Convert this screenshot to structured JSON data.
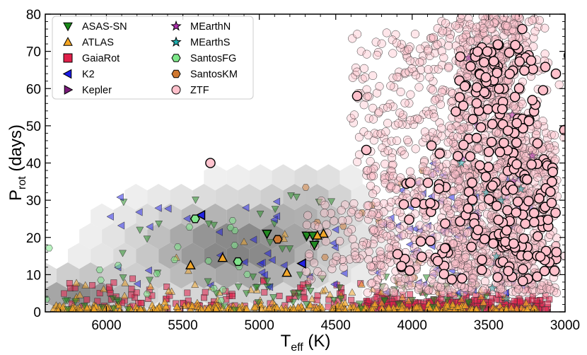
{
  "chart_data": {
    "type": "scatter",
    "title": "",
    "xlabel": "T",
    "xlabel_sub": "eff",
    "xlabel_unit": " (K)",
    "ylabel": "P",
    "ylabel_sub": "rot",
    "ylabel_unit": " (days)",
    "xlim": [
      6400,
      3000
    ],
    "ylim": [
      0,
      80
    ],
    "x_ticks": [
      6000,
      5500,
      5000,
      4500,
      4000,
      3500,
      3000
    ],
    "y_ticks": [
      0,
      10,
      20,
      30,
      40,
      50,
      60,
      70,
      80
    ],
    "legend_position": "top-left",
    "colors": {
      "ASAS-SN": "#1a8a1a",
      "ATLAS": "#f5a623",
      "GaiaRot": "#e0204a",
      "K2": "#1a1ae6",
      "Kepler": "#7a1a7a",
      "MEarthN": "#b030b0",
      "MEarthS": "#20b0b0",
      "SantosFG": "#7ee88a",
      "SantosKM": "#d07830",
      "ZTF": "#ffc0cb"
    },
    "legend": [
      "ASAS-SN",
      "ATLAS",
      "GaiaRot",
      "K2",
      "Kepler",
      "MEarthN",
      "MEarthS",
      "SantosFG",
      "SantosKM",
      "ZTF"
    ],
    "background_density": "grey hexbin density of a larger comparison sample, concentrated at Teff 4500-6400 K and Prot 0-35 days",
    "highlighted_points": [
      {
        "survey": "ASAS-SN",
        "x": 4950,
        "y": 21
      },
      {
        "survey": "ASAS-SN",
        "x": 4690,
        "y": 20.5
      },
      {
        "survey": "ASAS-SN",
        "x": 4640,
        "y": 18
      },
      {
        "survey": "ASAS-SN",
        "x": 4650,
        "y": 20.5
      },
      {
        "survey": "ATLAS",
        "x": 5450,
        "y": 12.5
      },
      {
        "survey": "ATLAS",
        "x": 5240,
        "y": 14.5
      },
      {
        "survey": "ATLAS",
        "x": 4820,
        "y": 10.5
      },
      {
        "survey": "ATLAS",
        "x": 4580,
        "y": 21
      },
      {
        "survey": "ATLAS",
        "x": 4620,
        "y": 20.5
      },
      {
        "survey": "K2",
        "x": 5380,
        "y": 26
      },
      {
        "survey": "K2",
        "x": 4720,
        "y": 13
      },
      {
        "survey": "SantosFG",
        "x": 5420,
        "y": 25
      },
      {
        "survey": "SantosFG",
        "x": 5140,
        "y": 13.5
      },
      {
        "survey": "SantosKM",
        "x": 4880,
        "y": 19.5
      },
      {
        "survey": "ZTF",
        "x": 5320,
        "y": 40
      },
      {
        "survey": "ZTF",
        "x": 4360,
        "y": 58
      },
      {
        "survey": "ZTF",
        "x": 4300,
        "y": 43.5
      },
      {
        "survey": "ZTF",
        "x": 3820,
        "y": 42.5
      },
      {
        "survey": "ZTF",
        "x": 3560,
        "y": 64
      },
      {
        "survey": "ZTF",
        "x": 3440,
        "y": 66
      },
      {
        "survey": "ZTF",
        "x": 3060,
        "y": 64
      },
      {
        "survey": "ZTF",
        "x": 3280,
        "y": 76
      },
      {
        "survey": "ZTF",
        "x": 3140,
        "y": 41
      }
    ],
    "clusters": [
      {
        "survey": "ZTF",
        "x_range": [
          3050,
          4300
        ],
        "y_range": [
          5,
          80
        ],
        "description": "dense cloud of M-dwarf rotation periods, densest at 3300-3700 K"
      },
      {
        "survey": "GaiaRot",
        "x_range": [
          3100,
          6300
        ],
        "y_range": [
          0,
          7
        ],
        "description": "short-period squares along the bottom"
      },
      {
        "survey": "ATLAS",
        "x_range": [
          3100,
          6350
        ],
        "y_range": [
          0,
          12
        ],
        "description": "mostly near 0-2 days"
      },
      {
        "survey": "K2",
        "x_range": [
          3200,
          6000
        ],
        "y_range": [
          5,
          40
        ]
      },
      {
        "survey": "ASAS-SN",
        "x_range": [
          3500,
          6350
        ],
        "y_range": [
          0,
          35
        ]
      },
      {
        "survey": "SantosFG",
        "x_range": [
          5000,
          6400
        ],
        "y_range": [
          3,
          42
        ]
      },
      {
        "survey": "SantosKM",
        "x_range": [
          3500,
          4900
        ],
        "y_range": [
          5,
          40
        ]
      }
    ]
  }
}
